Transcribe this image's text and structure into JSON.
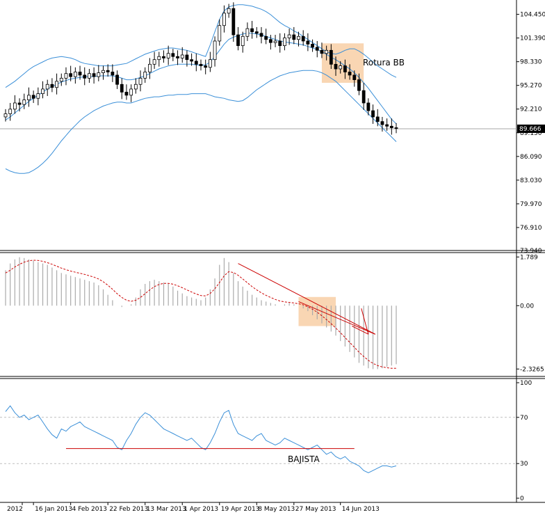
{
  "chart_data": [
    {
      "type": "candlestick",
      "panel": "price",
      "annotation": "Rotura BB",
      "current_price": 89.666,
      "y_ticks": [
        104.45,
        101.39,
        98.33,
        95.27,
        92.21,
        89.15,
        86.09,
        83.03,
        79.97,
        76.91,
        73.94
      ],
      "y_tick_labels": [
        "104.450",
        "101.390",
        "98.330",
        "95.270",
        "92.210",
        "89.150",
        "86.090",
        "83.030",
        "79.970",
        "76.910",
        "73.940"
      ],
      "ylim": [
        73.94,
        106.3
      ],
      "current_price_label": "89.666",
      "series": [
        {
          "name": "close",
          "values": [
            91.6,
            92.2,
            93.0,
            92.8,
            93.4,
            94.0,
            93.6,
            94.2,
            94.8,
            95.4,
            95.0,
            95.8,
            96.2,
            96.8,
            96.4,
            97.0,
            96.6,
            96.2,
            96.8,
            96.4,
            96.9,
            97.2,
            97.0,
            96.6,
            95.4,
            94.4,
            94.0,
            94.8,
            95.4,
            96.2,
            97.0,
            98.0,
            98.6,
            99.0,
            98.8,
            99.4,
            99.0,
            98.8,
            99.2,
            98.6,
            98.4,
            98.0,
            97.8,
            97.6,
            98.6,
            101.0,
            103.0,
            104.6,
            105.2,
            101.8,
            100.4,
            101.6,
            102.6,
            102.2,
            102.0,
            101.6,
            101.2,
            100.8,
            101.0,
            100.4,
            101.4,
            101.8,
            101.2,
            101.6,
            101.0,
            100.6,
            100.2,
            99.8,
            99.4,
            99.8,
            98.0,
            97.4,
            97.8,
            97.0,
            96.6,
            96.0,
            94.6,
            93.0,
            92.0,
            91.2,
            90.6,
            90.2,
            90.0,
            89.8,
            89.7
          ]
        },
        {
          "name": "upper_band",
          "values": [
            95.0,
            95.4,
            95.8,
            96.3,
            96.8,
            97.3,
            97.7,
            98.0,
            98.3,
            98.6,
            98.8,
            98.9,
            99.0,
            98.9,
            98.8,
            98.6,
            98.3,
            98.1,
            98.0,
            97.9,
            97.8,
            97.8,
            97.8,
            97.8,
            97.9,
            98.0,
            98.1,
            98.4,
            98.7,
            99.0,
            99.3,
            99.5,
            99.7,
            99.9,
            100.0,
            100.1,
            100.1,
            100.0,
            99.9,
            99.8,
            99.6,
            99.4,
            99.2,
            99.0,
            100.5,
            102.2,
            103.8,
            104.9,
            105.4,
            105.6,
            105.7,
            105.7,
            105.6,
            105.5,
            105.3,
            105.1,
            104.8,
            104.4,
            103.9,
            103.4,
            103.0,
            102.7,
            102.3,
            102.0,
            101.6,
            101.2,
            100.8,
            100.4,
            100.0,
            99.6,
            99.4,
            99.3,
            99.5,
            99.8,
            100.0,
            100.0,
            99.7,
            99.3,
            98.8,
            98.3,
            97.8,
            97.4,
            97.0,
            96.6,
            96.3
          ]
        },
        {
          "name": "middle_band",
          "values": [
            90.8,
            91.2,
            91.7,
            92.2,
            92.7,
            93.2,
            93.6,
            94.0,
            94.4,
            94.8,
            95.1,
            95.4,
            95.7,
            95.9,
            96.1,
            96.2,
            96.3,
            96.4,
            96.4,
            96.4,
            96.5,
            96.5,
            96.5,
            96.5,
            96.4,
            96.2,
            96.0,
            96.0,
            96.1,
            96.3,
            96.5,
            96.8,
            97.1,
            97.4,
            97.6,
            97.8,
            97.9,
            98.0,
            98.0,
            98.0,
            98.0,
            97.9,
            97.9,
            97.9,
            98.3,
            99.0,
            99.8,
            100.6,
            101.2,
            101.5,
            101.7,
            101.9,
            102.0,
            102.0,
            101.9,
            101.8,
            101.6,
            101.4,
            101.2,
            101.0,
            100.9,
            100.8,
            100.7,
            100.6,
            100.5,
            100.3,
            100.1,
            99.9,
            99.6,
            99.3,
            98.9,
            98.6,
            98.2,
            97.8,
            97.4,
            96.9,
            96.3,
            95.6,
            94.9,
            94.1,
            93.3,
            92.5,
            91.7,
            90.9,
            90.3
          ]
        },
        {
          "name": "lower_band",
          "values": [
            84.5,
            84.2,
            84.0,
            83.9,
            83.9,
            84.0,
            84.3,
            84.7,
            85.2,
            85.8,
            86.5,
            87.3,
            88.1,
            88.8,
            89.5,
            90.1,
            90.7,
            91.2,
            91.6,
            92.0,
            92.3,
            92.6,
            92.8,
            93.0,
            93.1,
            93.1,
            93.0,
            93.0,
            93.2,
            93.4,
            93.6,
            93.7,
            93.8,
            93.8,
            93.9,
            94.0,
            94.0,
            94.1,
            94.1,
            94.1,
            94.2,
            94.2,
            94.2,
            94.2,
            94.0,
            93.8,
            93.7,
            93.6,
            93.4,
            93.3,
            93.2,
            93.3,
            93.7,
            94.2,
            94.7,
            95.1,
            95.5,
            95.9,
            96.2,
            96.5,
            96.7,
            96.9,
            97.0,
            97.1,
            97.2,
            97.2,
            97.2,
            97.1,
            96.9,
            96.6,
            96.2,
            95.8,
            95.2,
            94.6,
            94.0,
            93.4,
            92.8,
            92.2,
            91.6,
            91.0,
            90.4,
            89.8,
            89.2,
            88.6,
            88.0
          ]
        }
      ]
    },
    {
      "type": "bar",
      "panel": "macd",
      "y_ticks": [
        1.789,
        0.0,
        -2.3265
      ],
      "y_tick_labels": [
        "1.789",
        "0.00",
        "-2.3265"
      ],
      "ylim": [
        -2.6,
        1.95
      ],
      "series": [
        {
          "name": "histogram",
          "values": [
            1.3,
            1.55,
            1.7,
            1.78,
            1.75,
            1.7,
            1.65,
            1.6,
            1.55,
            1.5,
            1.4,
            1.3,
            1.2,
            1.15,
            1.1,
            1.05,
            1.0,
            0.95,
            0.9,
            0.85,
            0.75,
            0.6,
            0.4,
            0.2,
            0.0,
            -0.05,
            0.0,
            0.05,
            0.3,
            0.6,
            0.8,
            0.9,
            0.95,
            0.9,
            0.85,
            0.8,
            0.7,
            0.55,
            0.45,
            0.35,
            0.3,
            0.25,
            0.2,
            0.3,
            0.6,
            1.0,
            1.5,
            1.75,
            1.6,
            1.2,
            0.9,
            0.7,
            0.55,
            0.4,
            0.3,
            0.2,
            0.15,
            0.1,
            0.05,
            0.0,
            0.05,
            0.1,
            0.05,
            0.0,
            -0.1,
            -0.2,
            -0.35,
            -0.5,
            -0.65,
            -0.8,
            -0.95,
            -1.1,
            -1.3,
            -1.5,
            -1.7,
            -1.9,
            -2.1,
            -2.2,
            -2.3,
            -2.33,
            -2.33,
            -2.3,
            -2.25,
            -2.2,
            -2.15
          ]
        },
        {
          "name": "signal",
          "values": [
            1.2,
            1.3,
            1.42,
            1.52,
            1.6,
            1.65,
            1.67,
            1.66,
            1.63,
            1.58,
            1.52,
            1.45,
            1.38,
            1.32,
            1.27,
            1.23,
            1.19,
            1.15,
            1.1,
            1.05,
            0.98,
            0.88,
            0.75,
            0.6,
            0.44,
            0.3,
            0.2,
            0.16,
            0.2,
            0.3,
            0.44,
            0.58,
            0.7,
            0.78,
            0.82,
            0.82,
            0.79,
            0.73,
            0.66,
            0.58,
            0.5,
            0.43,
            0.37,
            0.36,
            0.45,
            0.62,
            0.85,
            1.1,
            1.25,
            1.22,
            1.12,
            0.98,
            0.84,
            0.7,
            0.58,
            0.47,
            0.38,
            0.3,
            0.23,
            0.17,
            0.14,
            0.12,
            0.1,
            0.07,
            0.03,
            -0.04,
            -0.13,
            -0.24,
            -0.37,
            -0.51,
            -0.66,
            -0.82,
            -0.99,
            -1.17,
            -1.35,
            -1.53,
            -1.71,
            -1.87,
            -2.01,
            -2.12,
            -2.2,
            -2.25,
            -2.28,
            -2.3,
            -2.3
          ]
        }
      ]
    },
    {
      "type": "line",
      "panel": "rsi",
      "annotation": "BAJISTA",
      "y_ticks": [
        100,
        70,
        30,
        0
      ],
      "y_tick_labels": [
        "100",
        "70",
        "30",
        "0"
      ],
      "ylim": [
        0,
        100
      ],
      "support_level": 43,
      "series": [
        {
          "name": "rsi",
          "values": [
            75,
            80,
            74,
            70,
            72,
            68,
            70,
            72,
            66,
            60,
            55,
            52,
            60,
            58,
            62,
            64,
            66,
            62,
            60,
            58,
            56,
            54,
            52,
            50,
            44,
            42,
            50,
            56,
            64,
            70,
            74,
            72,
            68,
            64,
            60,
            58,
            56,
            54,
            52,
            50,
            52,
            48,
            44,
            42,
            48,
            56,
            66,
            74,
            76,
            64,
            56,
            54,
            52,
            50,
            54,
            56,
            50,
            48,
            46,
            48,
            52,
            50,
            48,
            46,
            44,
            42,
            44,
            46,
            42,
            38,
            40,
            36,
            34,
            36,
            32,
            30,
            28,
            24,
            22,
            24,
            26,
            28,
            28,
            27,
            28
          ]
        }
      ]
    }
  ],
  "x_axis": {
    "labels": [
      "2012",
      "16 Jan 2013",
      "4 Feb 2013",
      "22 Feb 2013",
      "13 Mar 2013",
      "1 Apr 2013",
      "19 Apr 2013",
      "8 May 2013",
      "27 May 2013",
      "14 Jun 2013"
    ]
  },
  "colors": {
    "bands": "#3a8fd8",
    "candle": "#000000",
    "histogram": "#aaaaaa",
    "signal": "#cc0000",
    "trendline": "#cc0000",
    "highlight": "#f8cfa6",
    "rsi": "#3a8fd8",
    "gridline": "#999999"
  }
}
